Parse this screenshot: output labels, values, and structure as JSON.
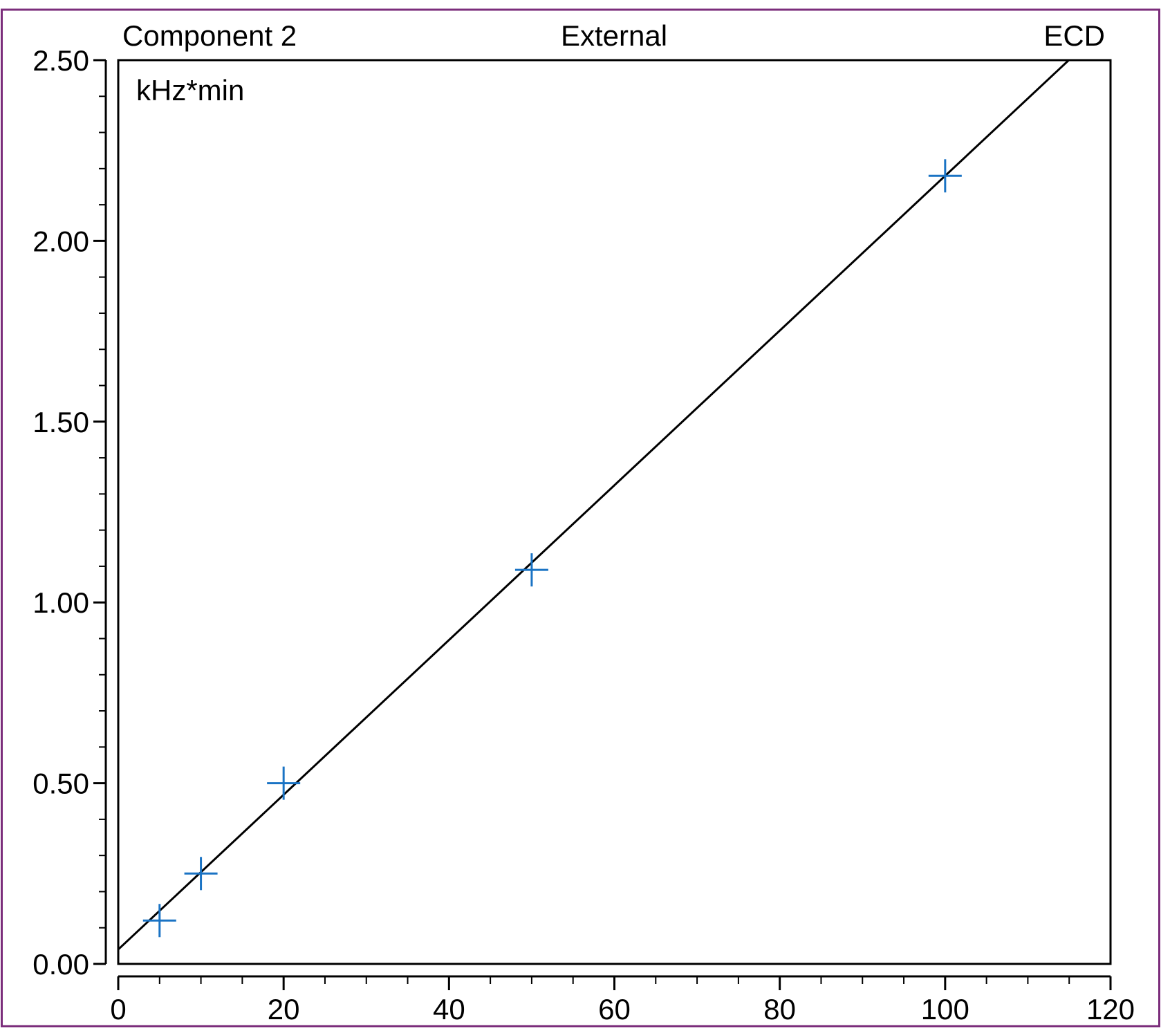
{
  "chart_data": {
    "type": "scatter",
    "header": {
      "left": "Component 2",
      "center": "External",
      "right": "ECD"
    },
    "ylabel": "kHz*min",
    "xlabel": "",
    "xlim": [
      0,
      120
    ],
    "ylim": [
      0,
      2.5
    ],
    "x_ticks": [
      "0",
      "20",
      "40",
      "60",
      "80",
      "100",
      "120"
    ],
    "y_ticks": [
      "0.00",
      "0.50",
      "1.00",
      "1.50",
      "2.00",
      "2.50"
    ],
    "grid": false,
    "points": [
      {
        "x": 5,
        "y": 0.12
      },
      {
        "x": 10,
        "y": 0.25
      },
      {
        "x": 20,
        "y": 0.5
      },
      {
        "x": 50,
        "y": 1.09
      },
      {
        "x": 100,
        "y": 2.18
      }
    ],
    "fit_line": {
      "intercept": 0.04,
      "slope": 0.0214
    },
    "colors": {
      "frame": "#7b2d7b",
      "marker": "#1a73c4",
      "line": "#000000",
      "axis": "#000000"
    }
  }
}
